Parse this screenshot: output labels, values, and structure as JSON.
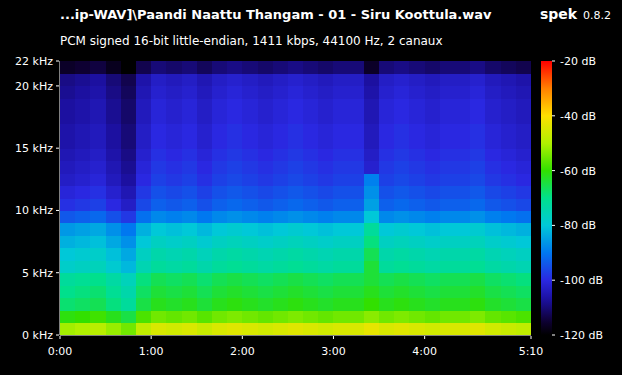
{
  "chart_data": {
    "type": "heatmap",
    "title": "...ip-WAV]\\Paandi Naattu Thangam - 01 - Siru Koottula.wav",
    "subtitle": "PCM signed 16-bit little-endian, 1411 kbps, 44100 Hz, 2 canaux",
    "annotations": [
      "spek",
      "0.8.2"
    ],
    "grid": false,
    "xlim": [
      0,
      310
    ],
    "ylim": [
      0,
      22
    ],
    "xticks": [
      {
        "value": 0,
        "label": "0:00"
      },
      {
        "value": 60,
        "label": "1:00"
      },
      {
        "value": 120,
        "label": "2:00"
      },
      {
        "value": 180,
        "label": "3:00"
      },
      {
        "value": 240,
        "label": "4:00"
      },
      {
        "value": 310,
        "label": "5:10"
      }
    ],
    "yticks": [
      {
        "value": 0,
        "label": "0 kHz"
      },
      {
        "value": 5,
        "label": "5 kHz"
      },
      {
        "value": 10,
        "label": "10 kHz"
      },
      {
        "value": 15,
        "label": "15 kHz"
      },
      {
        "value": 20,
        "label": "20 kHz"
      },
      {
        "value": 22,
        "label": "22 kHz"
      }
    ],
    "colorbar_range": [
      -120,
      -20
    ],
    "colorbar_ticks": [
      {
        "value": -20,
        "label": "-20 dB"
      },
      {
        "value": -40,
        "label": "-40 dB"
      },
      {
        "value": -60,
        "label": "-60 dB"
      },
      {
        "value": -80,
        "label": "-80 dB"
      },
      {
        "value": -100,
        "label": "-100 dB"
      },
      {
        "value": -120,
        "label": "-120 dB"
      }
    ],
    "x_bins": [
      0,
      10,
      20,
      30,
      40,
      50,
      60,
      70,
      80,
      90,
      100,
      110,
      120,
      130,
      140,
      150,
      160,
      170,
      180,
      190,
      200,
      210,
      220,
      230,
      240,
      250,
      260,
      270,
      280,
      290,
      300,
      310
    ],
    "y_bins": [
      0,
      1,
      2,
      3,
      4,
      5,
      6,
      7,
      8,
      9,
      10,
      11,
      12,
      13,
      14,
      15,
      16,
      17,
      18,
      19,
      20,
      21,
      22
    ],
    "cells": [
      [
        -51,
        -50,
        -49,
        -52,
        -55,
        -48,
        -45,
        -46,
        -45,
        -47,
        -45,
        -44,
        -45,
        -46,
        -45,
        -44,
        -45,
        -46,
        -45,
        -45,
        -43,
        -45,
        -44,
        -45,
        -46,
        -45,
        -45,
        -44,
        -46,
        -47,
        -48
      ],
      [
        -61,
        -60,
        -59,
        -62,
        -65,
        -58,
        -55,
        -56,
        -55,
        -57,
        -55,
        -54,
        -55,
        -56,
        -55,
        -54,
        -55,
        -56,
        -55,
        -55,
        -53,
        -55,
        -54,
        -55,
        -56,
        -55,
        -55,
        -54,
        -56,
        -57,
        -58
      ],
      [
        -68,
        -67,
        -66,
        -69,
        -72,
        -65,
        -62,
        -63,
        -62,
        -64,
        -62,
        -61,
        -62,
        -63,
        -62,
        -61,
        -62,
        -63,
        -62,
        -62,
        -60,
        -62,
        -61,
        -62,
        -63,
        -62,
        -62,
        -61,
        -63,
        -64,
        -65
      ],
      [
        -70,
        -69,
        -68,
        -71,
        -74,
        -67,
        -64,
        -65,
        -64,
        -66,
        -64,
        -63,
        -64,
        -65,
        -64,
        -63,
        -64,
        -65,
        -64,
        -64,
        -62,
        -64,
        -63,
        -64,
        -65,
        -64,
        -64,
        -63,
        -65,
        -66,
        -67
      ],
      [
        -72,
        -71,
        -70,
        -73,
        -76,
        -69,
        -66,
        -67,
        -66,
        -68,
        -66,
        -65,
        -66,
        -67,
        -66,
        -65,
        -66,
        -67,
        -66,
        -66,
        -64,
        -66,
        -65,
        -66,
        -67,
        -66,
        -66,
        -65,
        -67,
        -68,
        -69
      ],
      [
        -78,
        -77,
        -76,
        -79,
        -82,
        -75,
        -72,
        -73,
        -72,
        -74,
        -72,
        -71,
        -72,
        -73,
        -72,
        -71,
        -72,
        -73,
        -72,
        -72,
        -64,
        -72,
        -71,
        -72,
        -73,
        -72,
        -72,
        -71,
        -73,
        -74,
        -75
      ],
      [
        -80,
        -79,
        -78,
        -81,
        -84,
        -77,
        -74,
        -75,
        -74,
        -76,
        -74,
        -73,
        -74,
        -75,
        -74,
        -73,
        -74,
        -75,
        -74,
        -74,
        -66,
        -74,
        -73,
        -74,
        -75,
        -74,
        -74,
        -73,
        -75,
        -76,
        -77
      ],
      [
        -83,
        -82,
        -81,
        -84,
        -87,
        -80,
        -77,
        -78,
        -77,
        -79,
        -77,
        -76,
        -77,
        -78,
        -77,
        -76,
        -77,
        -78,
        -77,
        -77,
        -69,
        -77,
        -76,
        -77,
        -78,
        -77,
        -77,
        -76,
        -78,
        -79,
        -80
      ],
      [
        -86,
        -85,
        -84,
        -87,
        -90,
        -83,
        -80,
        -81,
        -80,
        -82,
        -80,
        -79,
        -80,
        -81,
        -80,
        -79,
        -80,
        -81,
        -80,
        -80,
        -72,
        -80,
        -79,
        -80,
        -81,
        -80,
        -80,
        -79,
        -81,
        -82,
        -83
      ],
      [
        -94,
        -93,
        -92,
        -95,
        -98,
        -91,
        -88,
        -89,
        -88,
        -90,
        -88,
        -87,
        -88,
        -89,
        -88,
        -87,
        -88,
        -89,
        -88,
        -88,
        -80,
        -88,
        -87,
        -88,
        -89,
        -88,
        -88,
        -87,
        -89,
        -90,
        -91
      ],
      [
        -99,
        -98,
        -97,
        -100,
        -103,
        -96,
        -93,
        -94,
        -93,
        -95,
        -93,
        -92,
        -93,
        -94,
        -93,
        -92,
        -93,
        -94,
        -93,
        -93,
        -85,
        -93,
        -92,
        -93,
        -94,
        -93,
        -93,
        -92,
        -94,
        -95,
        -96
      ],
      [
        -101,
        -100,
        -99,
        -102,
        -105,
        -98,
        -95,
        -96,
        -95,
        -97,
        -95,
        -94,
        -95,
        -96,
        -95,
        -94,
        -95,
        -96,
        -95,
        -95,
        -87,
        -95,
        -94,
        -95,
        -96,
        -95,
        -95,
        -94,
        -96,
        -97,
        -98
      ],
      [
        -103,
        -102,
        -101,
        -104,
        -107,
        -100,
        -97,
        -98,
        -97,
        -99,
        -97,
        -96,
        -97,
        -98,
        -97,
        -96,
        -97,
        -98,
        -97,
        -97,
        -89,
        -97,
        -96,
        -97,
        -98,
        -97,
        -97,
        -96,
        -98,
        -99,
        -100
      ],
      [
        -104,
        -103,
        -102,
        -105,
        -108,
        -101,
        -98,
        -99,
        -98,
        -100,
        -98,
        -97,
        -98,
        -99,
        -98,
        -97,
        -98,
        -99,
        -98,
        -98,
        -102,
        -98,
        -97,
        -98,
        -99,
        -98,
        -98,
        -97,
        -99,
        -100,
        -101
      ],
      [
        -105,
        -104,
        -103,
        -106,
        -109,
        -102,
        -99,
        -100,
        -99,
        -101,
        -99,
        -98,
        -99,
        -100,
        -99,
        -98,
        -99,
        -100,
        -99,
        -99,
        -103,
        -99,
        -98,
        -99,
        -100,
        -99,
        -99,
        -98,
        -100,
        -101,
        -102
      ],
      [
        -106,
        -105,
        -104,
        -107,
        -110,
        -103,
        -100,
        -101,
        -100,
        -102,
        -100,
        -99,
        -100,
        -101,
        -100,
        -99,
        -100,
        -101,
        -100,
        -100,
        -104,
        -100,
        -99,
        -100,
        -101,
        -100,
        -100,
        -99,
        -101,
        -102,
        -103
      ],
      [
        -106,
        -105,
        -104,
        -107,
        -110,
        -103,
        -100,
        -101,
        -100,
        -102,
        -100,
        -99,
        -100,
        -101,
        -100,
        -99,
        -100,
        -101,
        -100,
        -100,
        -104,
        -100,
        -99,
        -100,
        -101,
        -100,
        -100,
        -99,
        -101,
        -102,
        -103
      ],
      [
        -107,
        -106,
        -105,
        -108,
        -111,
        -104,
        -101,
        -102,
        -101,
        -103,
        -101,
        -100,
        -101,
        -102,
        -101,
        -100,
        -101,
        -102,
        -101,
        -101,
        -105,
        -101,
        -100,
        -101,
        -102,
        -101,
        -101,
        -100,
        -102,
        -103,
        -104
      ],
      [
        -107,
        -106,
        -105,
        -108,
        -111,
        -104,
        -101,
        -102,
        -101,
        -103,
        -101,
        -100,
        -101,
        -102,
        -101,
        -100,
        -101,
        -102,
        -101,
        -101,
        -105,
        -101,
        -100,
        -101,
        -102,
        -101,
        -101,
        -100,
        -102,
        -103,
        -104
      ],
      [
        -108,
        -107,
        -106,
        -109,
        -112,
        -105,
        -102,
        -103,
        -102,
        -104,
        -102,
        -101,
        -102,
        -103,
        -102,
        -101,
        -102,
        -103,
        -102,
        -102,
        -106,
        -102,
        -101,
        -102,
        -103,
        -102,
        -102,
        -101,
        -103,
        -104,
        -105
      ],
      [
        -109,
        -108,
        -107,
        -110,
        -113,
        -106,
        -103,
        -104,
        -103,
        -105,
        -103,
        -102,
        -103,
        -104,
        -103,
        -102,
        -103,
        -104,
        -103,
        -103,
        -107,
        -103,
        -102,
        -103,
        -104,
        -103,
        -103,
        -102,
        -104,
        -105,
        -106
      ],
      [
        -116,
        -115,
        -114,
        -117,
        -120,
        -113,
        -110,
        -111,
        -110,
        -112,
        -110,
        -109,
        -110,
        -111,
        -110,
        -109,
        -110,
        -111,
        -110,
        -110,
        -116,
        -110,
        -109,
        -110,
        -111,
        -110,
        -110,
        -109,
        -111,
        -112,
        -113
      ]
    ]
  }
}
